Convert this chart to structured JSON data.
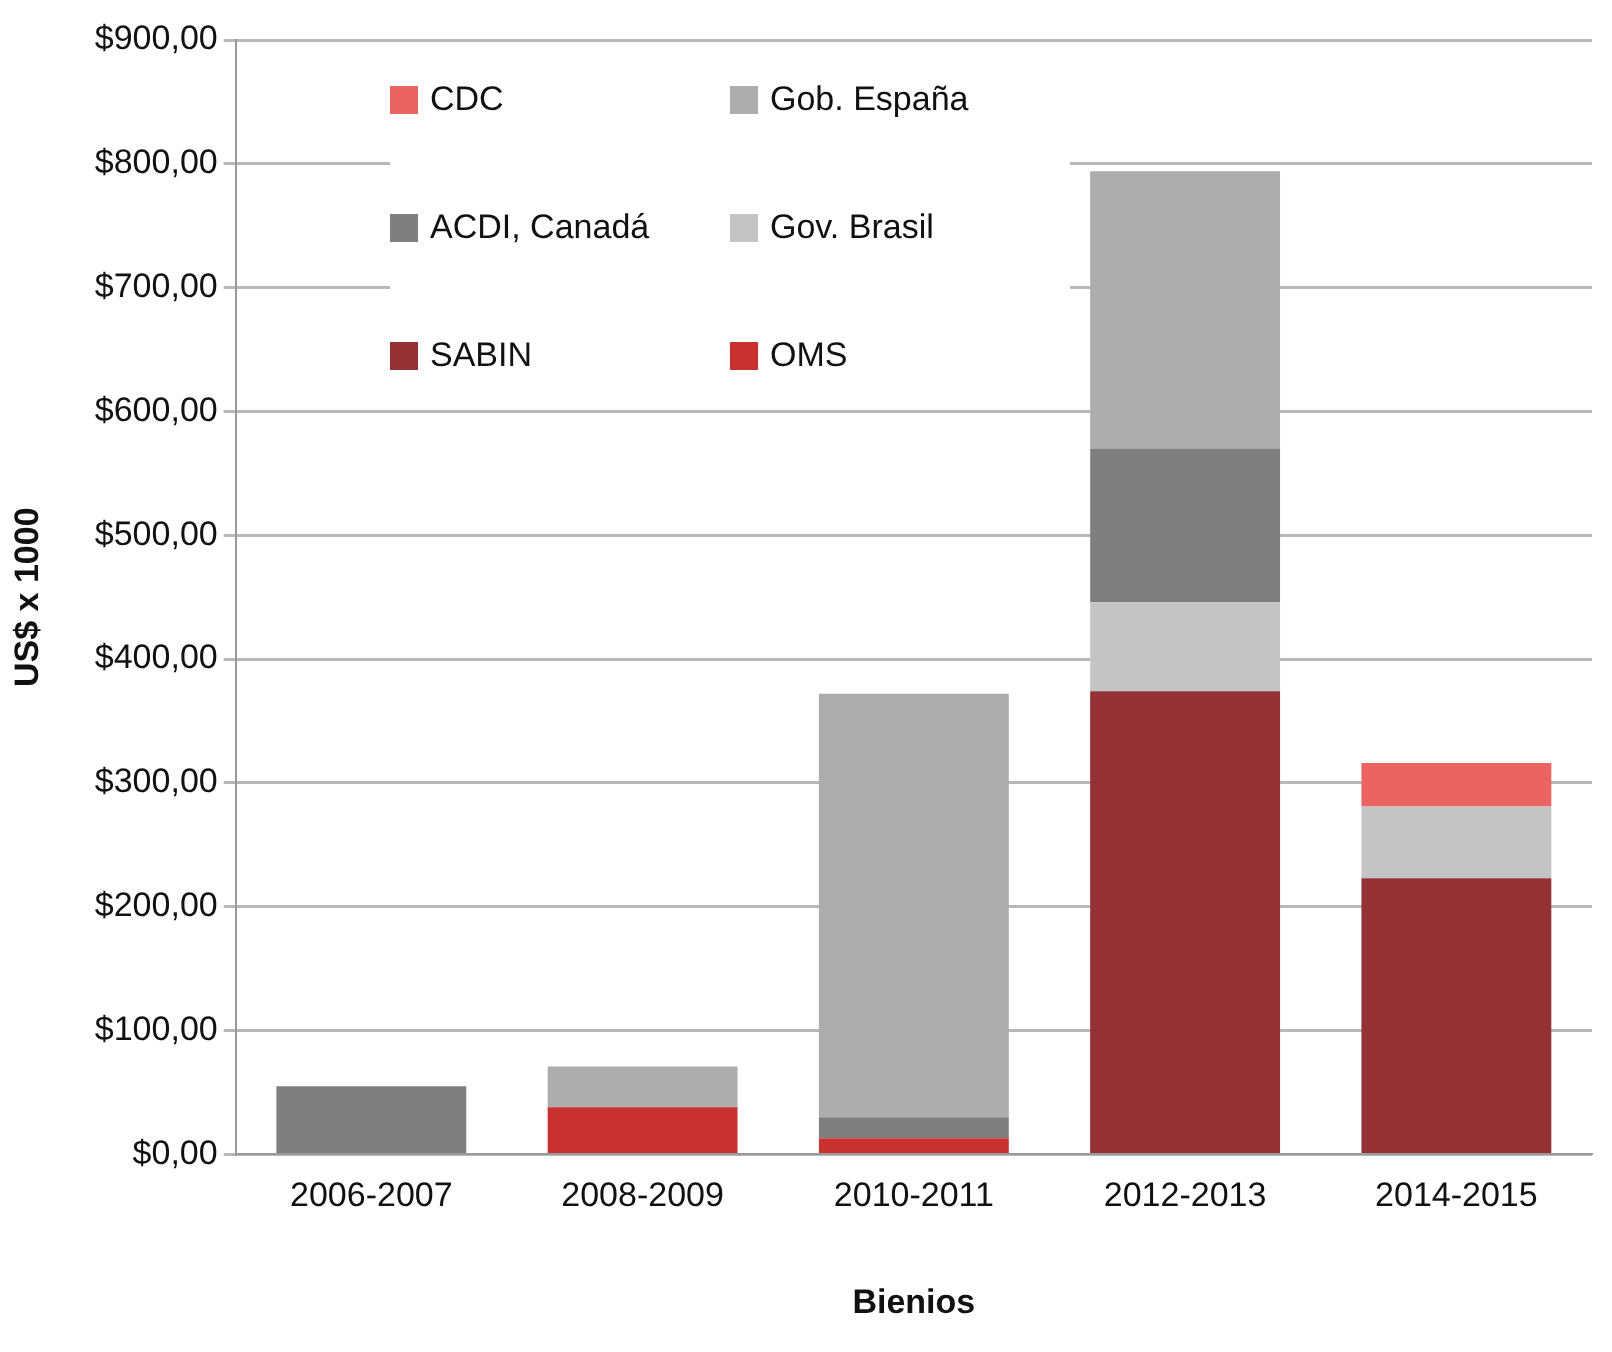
{
  "chart_data": {
    "type": "bar",
    "stacked": true,
    "xlabel": "Bienios",
    "ylabel": "US$ x 1000",
    "categories": [
      "2006-2007",
      "2008-2009",
      "2010-2011",
      "2012-2013",
      "2014-2015"
    ],
    "series": [
      {
        "name": "OMS",
        "color": "#c8312f",
        "values": [
          null,
          38,
          13,
          null,
          null
        ]
      },
      {
        "name": "SABIN",
        "color": "#943235",
        "values": [
          null,
          null,
          null,
          374,
          223
        ]
      },
      {
        "name": "Gov. Brasil",
        "color": "#c4c4c4",
        "values": [
          null,
          null,
          null,
          72,
          58
        ]
      },
      {
        "name": "ACDI, Canadá",
        "color": "#7f7f7f",
        "values": [
          55,
          null,
          17,
          124,
          null
        ]
      },
      {
        "name": "Gob. España",
        "color": "#adadad",
        "values": [
          null,
          33,
          342,
          224,
          null
        ]
      },
      {
        "name": "CDC",
        "color": "#ec6461",
        "values": [
          null,
          null,
          null,
          null,
          35
        ]
      }
    ],
    "ylim": [
      0,
      900
    ],
    "yticks": [
      {
        "value": 0,
        "label": "$0,00"
      },
      {
        "value": 100,
        "label": "$100,00"
      },
      {
        "value": 200,
        "label": "$200,00"
      },
      {
        "value": 300,
        "label": "$300,00"
      },
      {
        "value": 400,
        "label": "$400,00"
      },
      {
        "value": 500,
        "label": "$500,00"
      },
      {
        "value": 600,
        "label": "$600,00"
      },
      {
        "value": 700,
        "label": "$700,00"
      },
      {
        "value": 800,
        "label": "$800,00"
      },
      {
        "value": 900,
        "label": "$900,00"
      }
    ],
    "grid": "y",
    "legend": "top left"
  }
}
